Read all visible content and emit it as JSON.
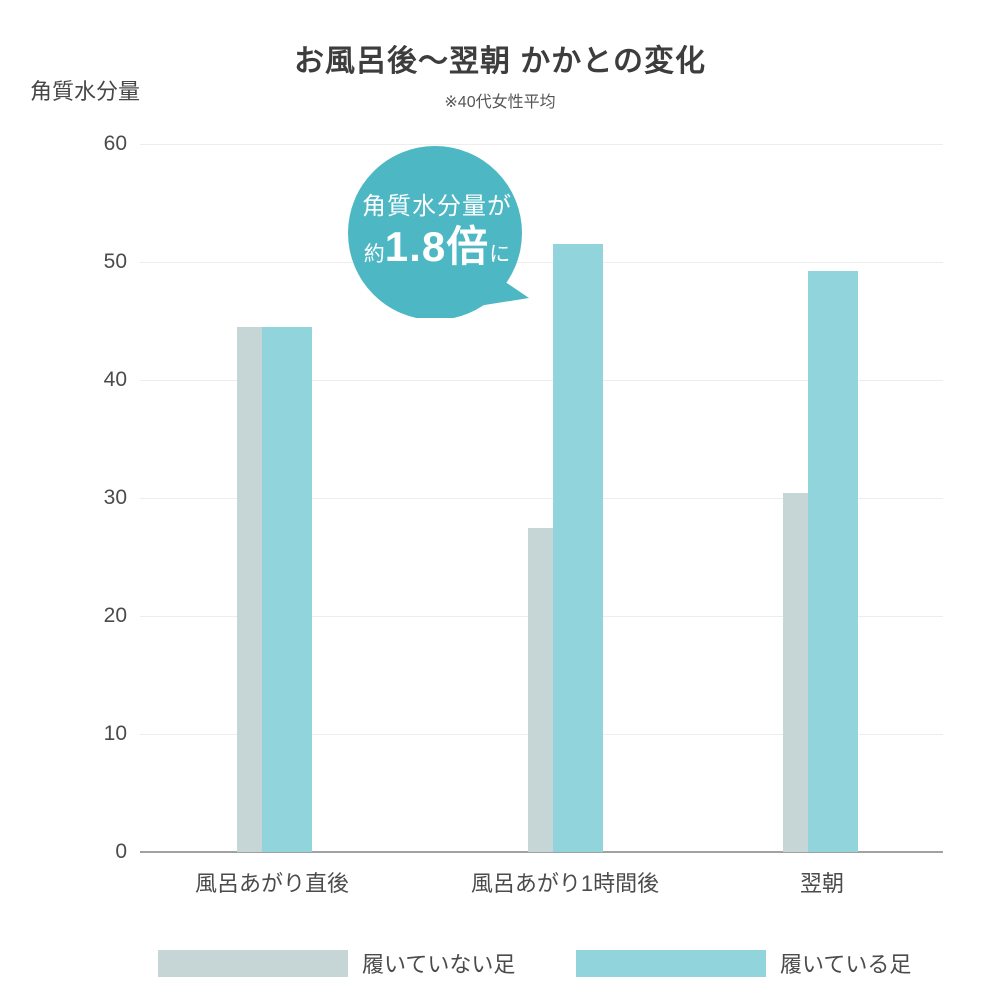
{
  "title": "お風呂後〜翌朝 かかとの変化",
  "subtitle": "※40代女性平均",
  "y_axis_unit": "角質水分量",
  "annotation_bubble": {
    "line1": "角質水分量が",
    "prefix": "約",
    "value": "1.8倍",
    "suffix": "に",
    "full_text": "角質水分量が約1.8倍に",
    "color": "#4db8c4",
    "text_color": "#ffffff"
  },
  "colors": {
    "series_not_wearing": "#c6d6d7",
    "series_wearing": "#92d4dc",
    "bubble": "#4db8c4",
    "gridline": "#ededed",
    "axis_line": "#a0a2a2",
    "text": "#4b4b4b",
    "title_text": "#3d3d3d"
  },
  "chart_data": {
    "type": "bar",
    "title": "お風呂後〜翌朝 かかとの変化",
    "subtitle": "※40代女性平均",
    "ylabel": "角質水分量",
    "xlabel": "",
    "ylim": [
      0,
      60
    ],
    "yticks": [
      0,
      10,
      20,
      30,
      40,
      50,
      60
    ],
    "grid": true,
    "legend_position": "bottom",
    "categories": [
      "風呂あがり直後",
      "風呂あがり1時間後",
      "翌朝"
    ],
    "series": [
      {
        "name": "履いていない足",
        "color": "#c6d6d7",
        "values": [
          44.5,
          27.5,
          30.4
        ]
      },
      {
        "name": "履いている足",
        "color": "#92d4dc",
        "values": [
          44.5,
          51.5,
          49.2
        ]
      }
    ],
    "annotation": "角質水分量が約1.8倍に（風呂あがり1時間後）"
  },
  "legend": {
    "items": [
      {
        "label": "履いていない足",
        "color": "#c6d6d7"
      },
      {
        "label": "履いている足",
        "color": "#92d4dc"
      }
    ]
  }
}
